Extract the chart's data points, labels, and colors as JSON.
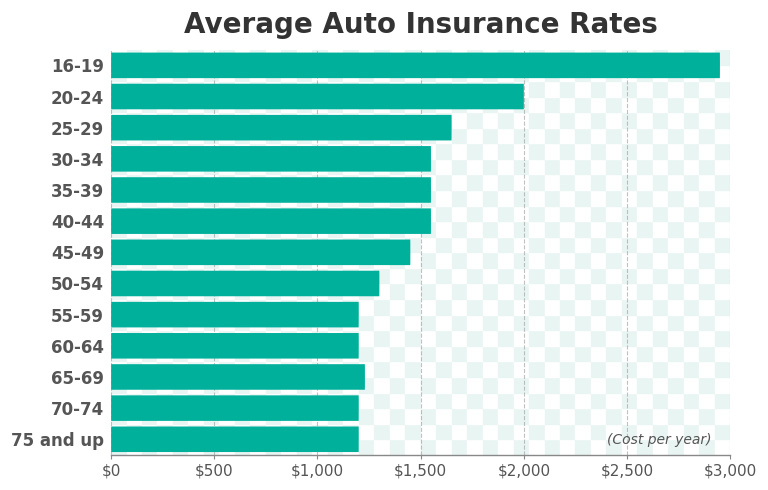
{
  "title": "Average Auto Insurance Rates",
  "categories": [
    "16-19",
    "20-24",
    "25-29",
    "30-34",
    "35-39",
    "40-44",
    "45-49",
    "50-54",
    "55-59",
    "60-64",
    "65-69",
    "70-74",
    "75 and up"
  ],
  "values": [
    2950,
    2000,
    1650,
    1550,
    1550,
    1550,
    1450,
    1300,
    1200,
    1200,
    1230,
    1200,
    1200
  ],
  "bar_color": "#00b09b",
  "background_color": "#ffffff",
  "plot_bg_color": "#ffffff",
  "fig_bg_color": "#ffffff",
  "xlim": [
    0,
    3000
  ],
  "xticks": [
    0,
    500,
    1000,
    1500,
    2000,
    2500,
    3000
  ],
  "annotation": "(Cost per year)",
  "title_fontsize": 20,
  "label_fontsize": 12,
  "tick_fontsize": 11,
  "bar_height": 0.82,
  "grid_color": "#999999",
  "grid_linestyle": "--",
  "grid_alpha": 0.6
}
